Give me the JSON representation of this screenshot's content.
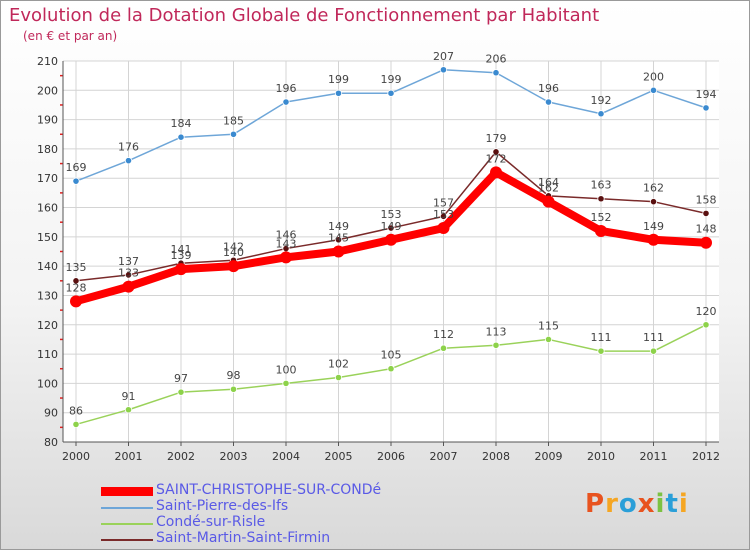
{
  "title": "Evolution de la Dotation Globale de Fonctionnement par Habitant",
  "subtitle": "(en € et par an)",
  "logo": {
    "text": "Proxiti",
    "letters": [
      "P",
      "r",
      "o",
      "x",
      "i",
      "t",
      "i"
    ],
    "colors": [
      "#e8531f",
      "#f5a623",
      "#2a9fd8",
      "#e8531f",
      "#7cc242",
      "#2a9fd8",
      "#f5a623"
    ]
  },
  "chart_data": {
    "type": "line",
    "title": "Evolution de la Dotation Globale de Fonctionnement par Habitant",
    "subtitle": "(en € et par an)",
    "x": [
      "2000",
      "2001",
      "2002",
      "2003",
      "2004",
      "2005",
      "2006",
      "2007",
      "2008",
      "2009",
      "2010",
      "2011",
      "2012"
    ],
    "ylim": [
      80,
      210
    ],
    "yticks": [
      80,
      90,
      100,
      110,
      120,
      130,
      140,
      150,
      160,
      170,
      180,
      190,
      200,
      210
    ],
    "grid": true,
    "legend_position": "bottom-left",
    "series": [
      {
        "name": "SAINT-CHRISTOPHE-SUR-CONDé",
        "color": "#ff0000",
        "marker": "#ff0000",
        "emphasis": true,
        "values": [
          128,
          133,
          139,
          140,
          143,
          145,
          149,
          153,
          172,
          162,
          152,
          149,
          148
        ]
      },
      {
        "name": "Saint-Pierre-des-Ifs",
        "color": "#6ea6d8",
        "marker": "#3a8ad0",
        "emphasis": false,
        "values": [
          169,
          176,
          184,
          185,
          196,
          199,
          199,
          207,
          206,
          196,
          192,
          200,
          194
        ]
      },
      {
        "name": "Condé-sur-Risle",
        "color": "#9ad25a",
        "marker": "#8dd24a",
        "emphasis": false,
        "values": [
          86,
          91,
          97,
          98,
          100,
          102,
          105,
          112,
          113,
          115,
          111,
          111,
          120
        ]
      },
      {
        "name": "Saint-Martin-Saint-Firmin",
        "color": "#7a2a2a",
        "marker": "#5a1010",
        "emphasis": false,
        "values": [
          135,
          137,
          141,
          142,
          146,
          149,
          153,
          157,
          179,
          164,
          163,
          162,
          158
        ]
      }
    ]
  }
}
